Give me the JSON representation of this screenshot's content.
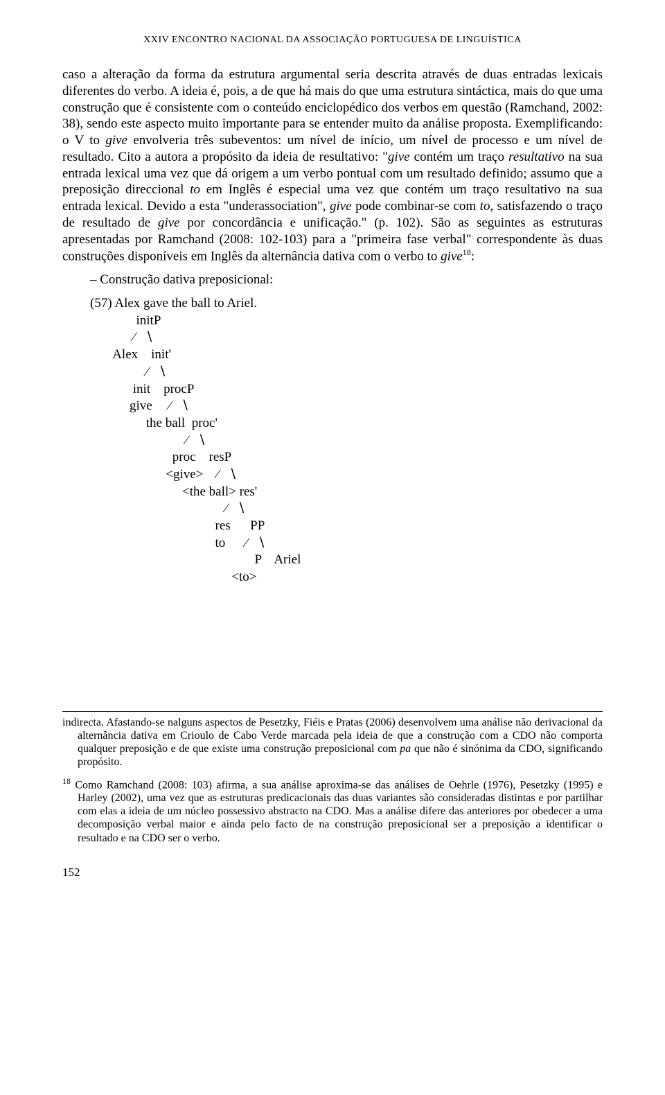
{
  "header": {
    "running": "XXIV ENCONTRO NACIONAL DA ASSOCIAÇÃO PORTUGUESA DE LINGUÍSTICA"
  },
  "body": {
    "para1_part1": "caso a alteração da forma da estrutura argumental seria descrita através de duas entradas lexicais diferentes do verbo. A ideia é, pois, a de que há mais do que uma estrutura sintáctica, mais do que uma construção que é consistente com o conteúdo enciclopédico dos verbos em questão (Ramchand, 2002: 38), sendo este aspecto muito importante para se entender muito da análise proposta. Exemplificando: o V to ",
    "give1": "give",
    "para1_part2": " envolveria três subeventos: um nível de início, um nível de processo e um nível de resultado. Cito a autora a propósito da ideia de resultativo: \"",
    "give2": "give",
    "para1_part3": " contém um traço ",
    "resultativo": "resultativo",
    "para1_part4": " na sua entrada lexical uma vez que dá origem a um verbo pontual com um resultado definido; assumo que a preposição direccional ",
    "to1": "to",
    "para1_part5": " em Inglês é especial uma vez que contém um traço resultativo na sua entrada lexical. Devido a esta \"underassociation\", ",
    "give3": "give",
    "para1_part6": " pode combinar-se com ",
    "to2": "to",
    "para1_part7": ", satisfazendo o traço de resultado de ",
    "give4": "give",
    "para1_part8": " por concordância e unificação.\" (p. 102). São as seguintes as estruturas apresentadas por Ramchand (2008: 102-103) para a \"primeira fase verbal\" correspondente às duas construções disponíveis em Inglês da alternância dativa com o verbo to ",
    "give5": "give",
    "footnote_ref": "18",
    "colon": ":",
    "construcao": "– Construção dativa preposicional:"
  },
  "tree": {
    "sentence": "(57) Alex gave the ball to Ariel.",
    "l1": "              initP",
    "l2": "             ∕   ∖",
    "l3": "       Alex    init'",
    "l4": "                 ∕   ∖",
    "l5": "             init    procP",
    "l6": "            give     ∕   ∖",
    "l7": "                 the ball  proc'",
    "l8": "                             ∕   ∖",
    "l9": "                         proc    resP",
    "l10": "                       <give>    ∕   ∖",
    "l11": "                            <the ball> res'",
    "l12": "                                         ∕   ∖",
    "l13": "                                      res      PP",
    "l14": "                                      to      ∕   ∖",
    "l15": "                                                  P    Ariel",
    "l16": "                                           <to>"
  },
  "footnotes": {
    "fn17_part1": "indirecta. Afastando-se nalguns aspectos de Pesetzky, Fiéis e Pratas (2006) desenvolvem uma análise não derivacional da alternância dativa em Crioulo de Cabo Verde marcada pela ideia de que a construção com a CDO não comporta qualquer preposição e de que existe uma construção preposicional com ",
    "fn17_pa": "pa",
    "fn17_part2": " que não é sinónima da CDO, significando propósito.",
    "fn18_num": "18",
    "fn18_text": " Como Ramchand (2008: 103) afirma, a sua análise aproxima-se das análises de Oehrle (1976), Pesetzky (1995) e Harley (2002), uma vez que as estruturas predicacionais das duas variantes são consideradas distintas e por partilhar com elas a ideia de um núcleo possessivo abstracto na CDO. Mas a análise difere das anteriores por obedecer a uma decomposição verbal maior e ainda pelo facto de na construção preposicional ser a preposição a identificar o resultado e na CDO ser o verbo."
  },
  "page_number": "152"
}
